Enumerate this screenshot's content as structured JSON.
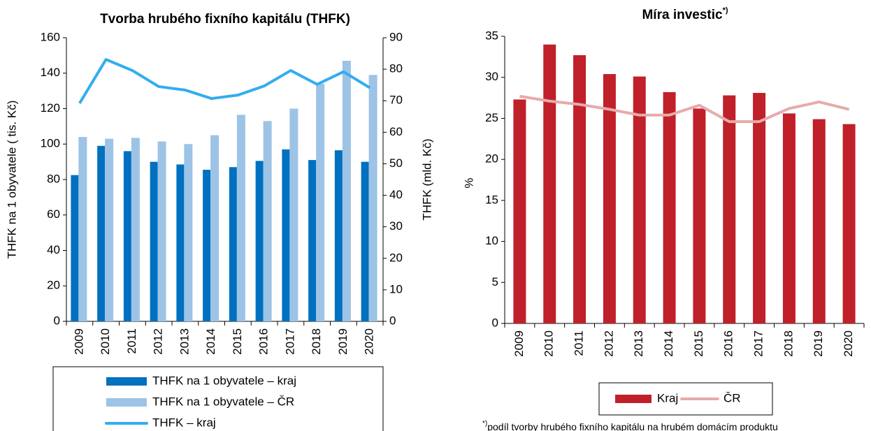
{
  "chart_data": [
    {
      "type": "bar_line",
      "title": "Tvorba hrubého fixního kapitálu (THFK)",
      "ylabel": "THFK na 1 obyvatele ( tis. Kč)",
      "y2label": "THFK (mld. Kč)",
      "categories": [
        "2009",
        "2010",
        "2011",
        "2012",
        "2013",
        "2014",
        "2015",
        "2016",
        "2017",
        "2018",
        "2019",
        "2020"
      ],
      "ylim": [
        0,
        160
      ],
      "yticks": [
        0,
        20,
        40,
        60,
        80,
        100,
        120,
        140,
        160
      ],
      "y2lim": [
        0,
        90
      ],
      "y2ticks": [
        0,
        10,
        20,
        30,
        40,
        50,
        60,
        70,
        80,
        90
      ],
      "series": [
        {
          "name": "THFK na 1 obyvatele – kraj",
          "type": "bar",
          "color": "#0070c0",
          "values": [
            82.5,
            99,
            96,
            90,
            88.5,
            85.5,
            87,
            90.5,
            97,
            91,
            96.5,
            90
          ]
        },
        {
          "name": "THFK na 1 obyvatele – ČR",
          "type": "bar",
          "color": "#9dc3e6",
          "values": [
            104,
            103,
            103.5,
            101.5,
            100,
            105,
            116.5,
            113,
            120,
            134,
            147,
            139
          ]
        },
        {
          "name": "THFK – kraj",
          "type": "line",
          "axis": "y2",
          "color": "#33adef",
          "values": [
            69.2,
            83.1,
            79.6,
            74.5,
            73.4,
            70.7,
            71.8,
            74.7,
            79.6,
            75.2,
            79.2,
            74.1
          ]
        }
      ]
    },
    {
      "type": "bar_line",
      "title": "Míra investic",
      "title_superscript": "*)",
      "ylabel": "%",
      "categories": [
        "2009",
        "2010",
        "2011",
        "2012",
        "2013",
        "2014",
        "2015",
        "2016",
        "2017",
        "2018",
        "2019",
        "2020"
      ],
      "ylim": [
        0,
        35
      ],
      "yticks": [
        0,
        5,
        10,
        15,
        20,
        25,
        30,
        35
      ],
      "series": [
        {
          "name": "Kraj",
          "type": "bar",
          "color": "#c0202a",
          "values": [
            27.3,
            34,
            32.7,
            30.4,
            30.1,
            28.2,
            26.2,
            27.8,
            28.1,
            25.6,
            24.9,
            24.3
          ]
        },
        {
          "name": "ČR",
          "type": "line",
          "color": "#e8aaaa",
          "values": [
            27.7,
            27.1,
            26.7,
            26.1,
            25.4,
            25.4,
            26.6,
            24.6,
            24.6,
            26.2,
            27.0,
            26.1
          ]
        }
      ],
      "footnote_marker": "*)",
      "footnote": "podíl tvorby hrubého fixního kapitálu na hrubém domácím produktu"
    }
  ]
}
